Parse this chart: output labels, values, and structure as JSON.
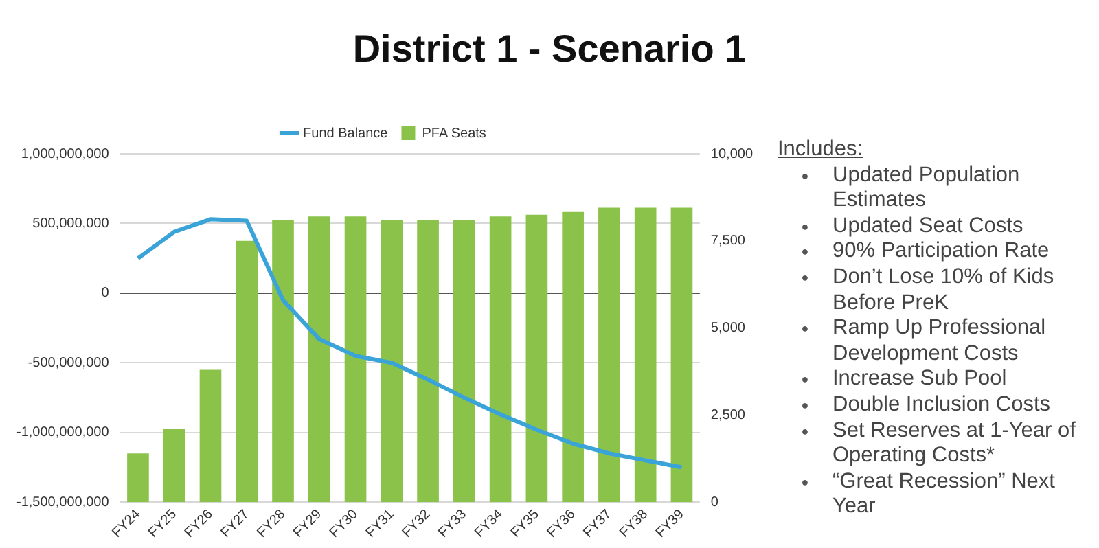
{
  "chart_data": {
    "type": "bar",
    "title": "District 1 - Scenario 1",
    "categories": [
      "FY24",
      "FY25",
      "FY26",
      "FY27",
      "FY28",
      "FY29",
      "FY30",
      "FY31",
      "FY32",
      "FY33",
      "FY34",
      "FY35",
      "FY36",
      "FY37",
      "FY38",
      "FY39"
    ],
    "series": [
      {
        "name": "Fund Balance",
        "type": "line",
        "color": "#3aa3d8",
        "values": [
          250000000,
          440000000,
          530000000,
          520000000,
          -50000000,
          -330000000,
          -450000000,
          -500000000,
          -620000000,
          -750000000,
          -870000000,
          -980000000,
          -1080000000,
          -1150000000,
          -1200000000,
          -1250000000
        ]
      },
      {
        "name": "PFA Seats",
        "axis": "y2",
        "color": "#8bc34a",
        "values": [
          1400,
          2100,
          3800,
          7500,
          8100,
          8200,
          8200,
          8100,
          8100,
          8100,
          8200,
          8250,
          8350,
          8450,
          8450,
          8450
        ]
      }
    ],
    "ylim": [
      -1500000000,
      1000000000
    ],
    "yticks": [
      {
        "value": -1500000000,
        "label": "-1,500,000,000"
      },
      {
        "value": -1000000000,
        "label": "-1,000,000,000"
      },
      {
        "value": -500000000,
        "label": "-500,000,000"
      },
      0,
      {
        "value": 500000000,
        "label": "500,000,000"
      },
      {
        "value": 1000000000,
        "label": "1,000,000,000"
      }
    ],
    "y2lim": [
      0,
      10000
    ],
    "y2ticks": [
      0,
      {
        "value": 2500,
        "label": "2,500"
      },
      {
        "value": 5000,
        "label": "5,000"
      },
      {
        "value": 7500,
        "label": "7,500"
      },
      {
        "value": 10000,
        "label": "10,000"
      }
    ],
    "grid": "y",
    "legend": "top",
    "marker": "none",
    "annotations": [
      "Includes:",
      "● Updated Population Estimates",
      "● Updated Seat Costs",
      "● 90% Participation Rate",
      "● Don’t Lose 10% of Kids Before PreK",
      "● Ramp Up Professional Development Costs",
      "● Increase Sub Pool",
      "● Double Inclusion Costs",
      "● Set Reserves at 1-Year of Operating Costs*",
      "● “Great Recession” Next Year"
    ]
  }
}
